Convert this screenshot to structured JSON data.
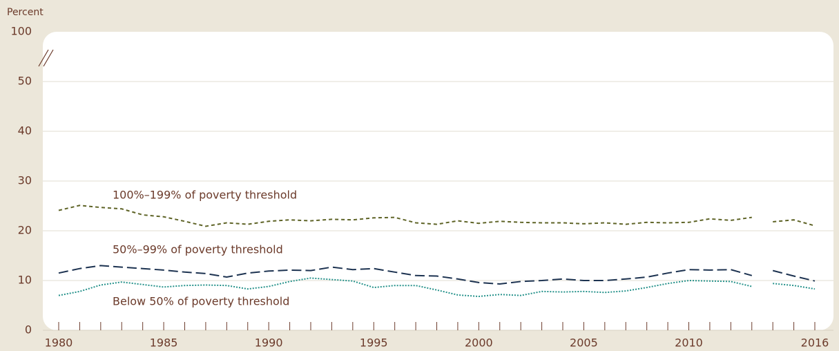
{
  "chart_data": {
    "type": "line",
    "y_label": "Percent",
    "x": [
      1980,
      1981,
      1982,
      1983,
      1984,
      1985,
      1986,
      1987,
      1988,
      1989,
      1990,
      1991,
      1992,
      1993,
      1994,
      1995,
      1996,
      1997,
      1998,
      1999,
      2000,
      2001,
      2002,
      2003,
      2004,
      2005,
      2006,
      2007,
      2008,
      2009,
      2010,
      2011,
      2012,
      2013,
      null,
      2014,
      2015,
      2016
    ],
    "series": [
      {
        "name": "100%–199% of poverty threshold",
        "color": "#5e6326",
        "dash": "5,4",
        "values": [
          24.1,
          25.1,
          24.7,
          24.4,
          23.2,
          22.8,
          21.9,
          20.9,
          21.6,
          21.3,
          21.9,
          22.2,
          22.0,
          22.3,
          22.2,
          22.6,
          22.7,
          21.6,
          21.3,
          22.0,
          21.5,
          21.9,
          21.7,
          21.6,
          21.6,
          21.4,
          21.6,
          21.3,
          21.7,
          21.6,
          21.7,
          22.4,
          22.1,
          22.7,
          null,
          21.8,
          22.2,
          21.0
        ]
      },
      {
        "name": "50%–99% of poverty threshold",
        "color": "#1c3250",
        "dash": "14,6",
        "values": [
          11.5,
          12.4,
          13.0,
          12.7,
          12.4,
          12.1,
          11.7,
          11.4,
          10.7,
          11.5,
          11.9,
          12.1,
          12.0,
          12.7,
          12.2,
          12.4,
          11.7,
          11.0,
          10.9,
          10.3,
          9.6,
          9.3,
          9.8,
          10.0,
          10.3,
          10.0,
          10.0,
          10.3,
          10.7,
          11.5,
          12.2,
          12.1,
          12.2,
          11.0,
          null,
          12.0,
          10.9,
          9.9
        ]
      },
      {
        "name": "Below 50% of poverty threshold",
        "color": "#24918a",
        "dash": "2,2",
        "values": [
          7.0,
          7.8,
          9.1,
          9.7,
          9.2,
          8.7,
          9.0,
          9.1,
          9.0,
          8.3,
          8.8,
          9.8,
          10.5,
          10.2,
          9.9,
          8.6,
          9.0,
          9.0,
          8.1,
          7.1,
          6.8,
          7.2,
          7.0,
          7.8,
          7.7,
          7.8,
          7.6,
          7.9,
          8.6,
          9.4,
          10.0,
          9.9,
          9.8,
          8.8,
          null,
          9.4,
          9.0,
          8.3
        ]
      }
    ],
    "xlim": [
      1980,
      2016
    ],
    "xticks": [
      1980,
      1985,
      1990,
      1995,
      2000,
      2005,
      2010,
      2016
    ],
    "ylim": [
      0,
      100
    ],
    "axis_break": [
      50,
      100
    ],
    "yticks": [
      0,
      10,
      20,
      30,
      40,
      50,
      100
    ],
    "grid": true
  }
}
